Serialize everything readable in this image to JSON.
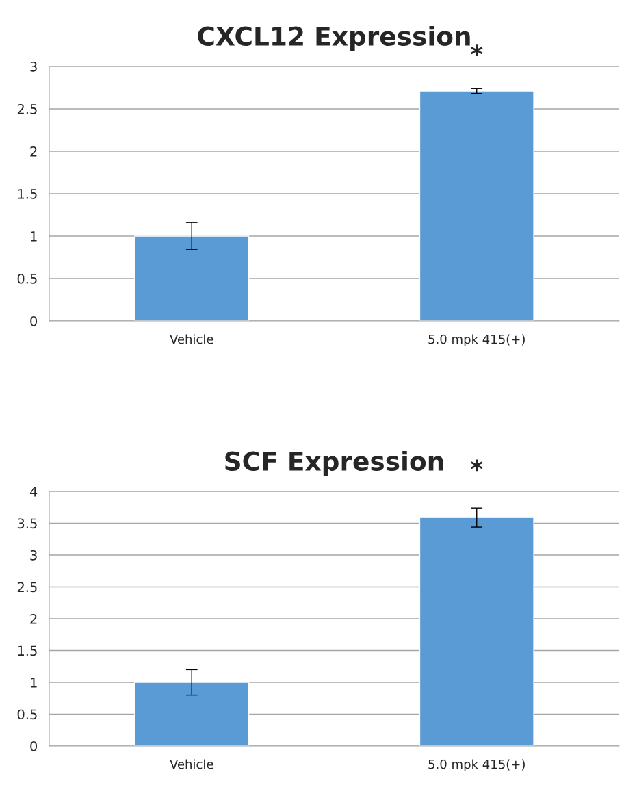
{
  "chart_data": [
    {
      "type": "bar",
      "title": "CXCL12 Expression",
      "categories": [
        "Vehicle",
        "5.0 mpk 415(+)"
      ],
      "values": [
        1,
        2.71
      ],
      "errors": [
        0.16,
        0.03
      ],
      "color": "#5b9bd5",
      "ylim": [
        0,
        3
      ],
      "yticks": [
        0,
        0.5,
        1,
        1.5,
        2,
        2.5,
        3
      ],
      "grid": "y",
      "legend": false,
      "annotations": [
        "*"
      ]
    },
    {
      "type": "bar",
      "title": "SCF Expression",
      "categories": [
        "Vehicle",
        "5.0 mpk 415(+)"
      ],
      "values": [
        1,
        3.59
      ],
      "errors": [
        0.2,
        0.15
      ],
      "color": "#5b9bd5",
      "ylim": [
        0,
        4
      ],
      "yticks": [
        0,
        0.5,
        1,
        1.5,
        2,
        2.5,
        3,
        3.5,
        4
      ],
      "grid": "y",
      "legend": false,
      "annotations": [
        "*"
      ]
    }
  ]
}
